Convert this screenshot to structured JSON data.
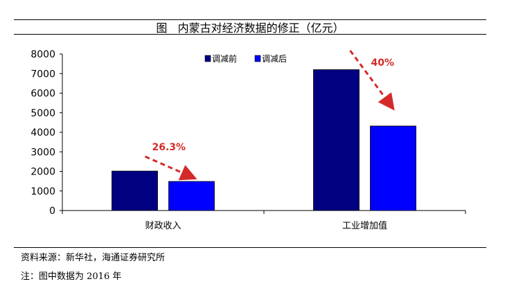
{
  "header": {
    "title": "图   内蒙古对经济数据的修正（亿元）"
  },
  "chart_data": {
    "type": "bar",
    "title": "图   内蒙古对经济数据的修正（亿元）",
    "categories": [
      "财政收入",
      "工业增加值"
    ],
    "series": [
      {
        "name": "调减前",
        "values": [
          2016,
          7200
        ],
        "color": "#000080"
      },
      {
        "name": "调减后",
        "values": [
          1486,
          4320
        ],
        "color": "#0000FF"
      }
    ],
    "ylim": [
      0,
      8000
    ],
    "yticks": [
      0,
      1000,
      2000,
      3000,
      4000,
      5000,
      6000,
      7000,
      8000
    ],
    "legend": "top-center",
    "grid": false,
    "annotations": [
      {
        "text": "26.3%",
        "category": "财政收入"
      },
      {
        "text": "40%",
        "category": "工业增加值"
      }
    ],
    "annotation_color": "#D42A2A"
  },
  "footer": {
    "source": "资料来源：新华社，海通证券研究所",
    "note": "注：图中数据为 2016 年"
  }
}
